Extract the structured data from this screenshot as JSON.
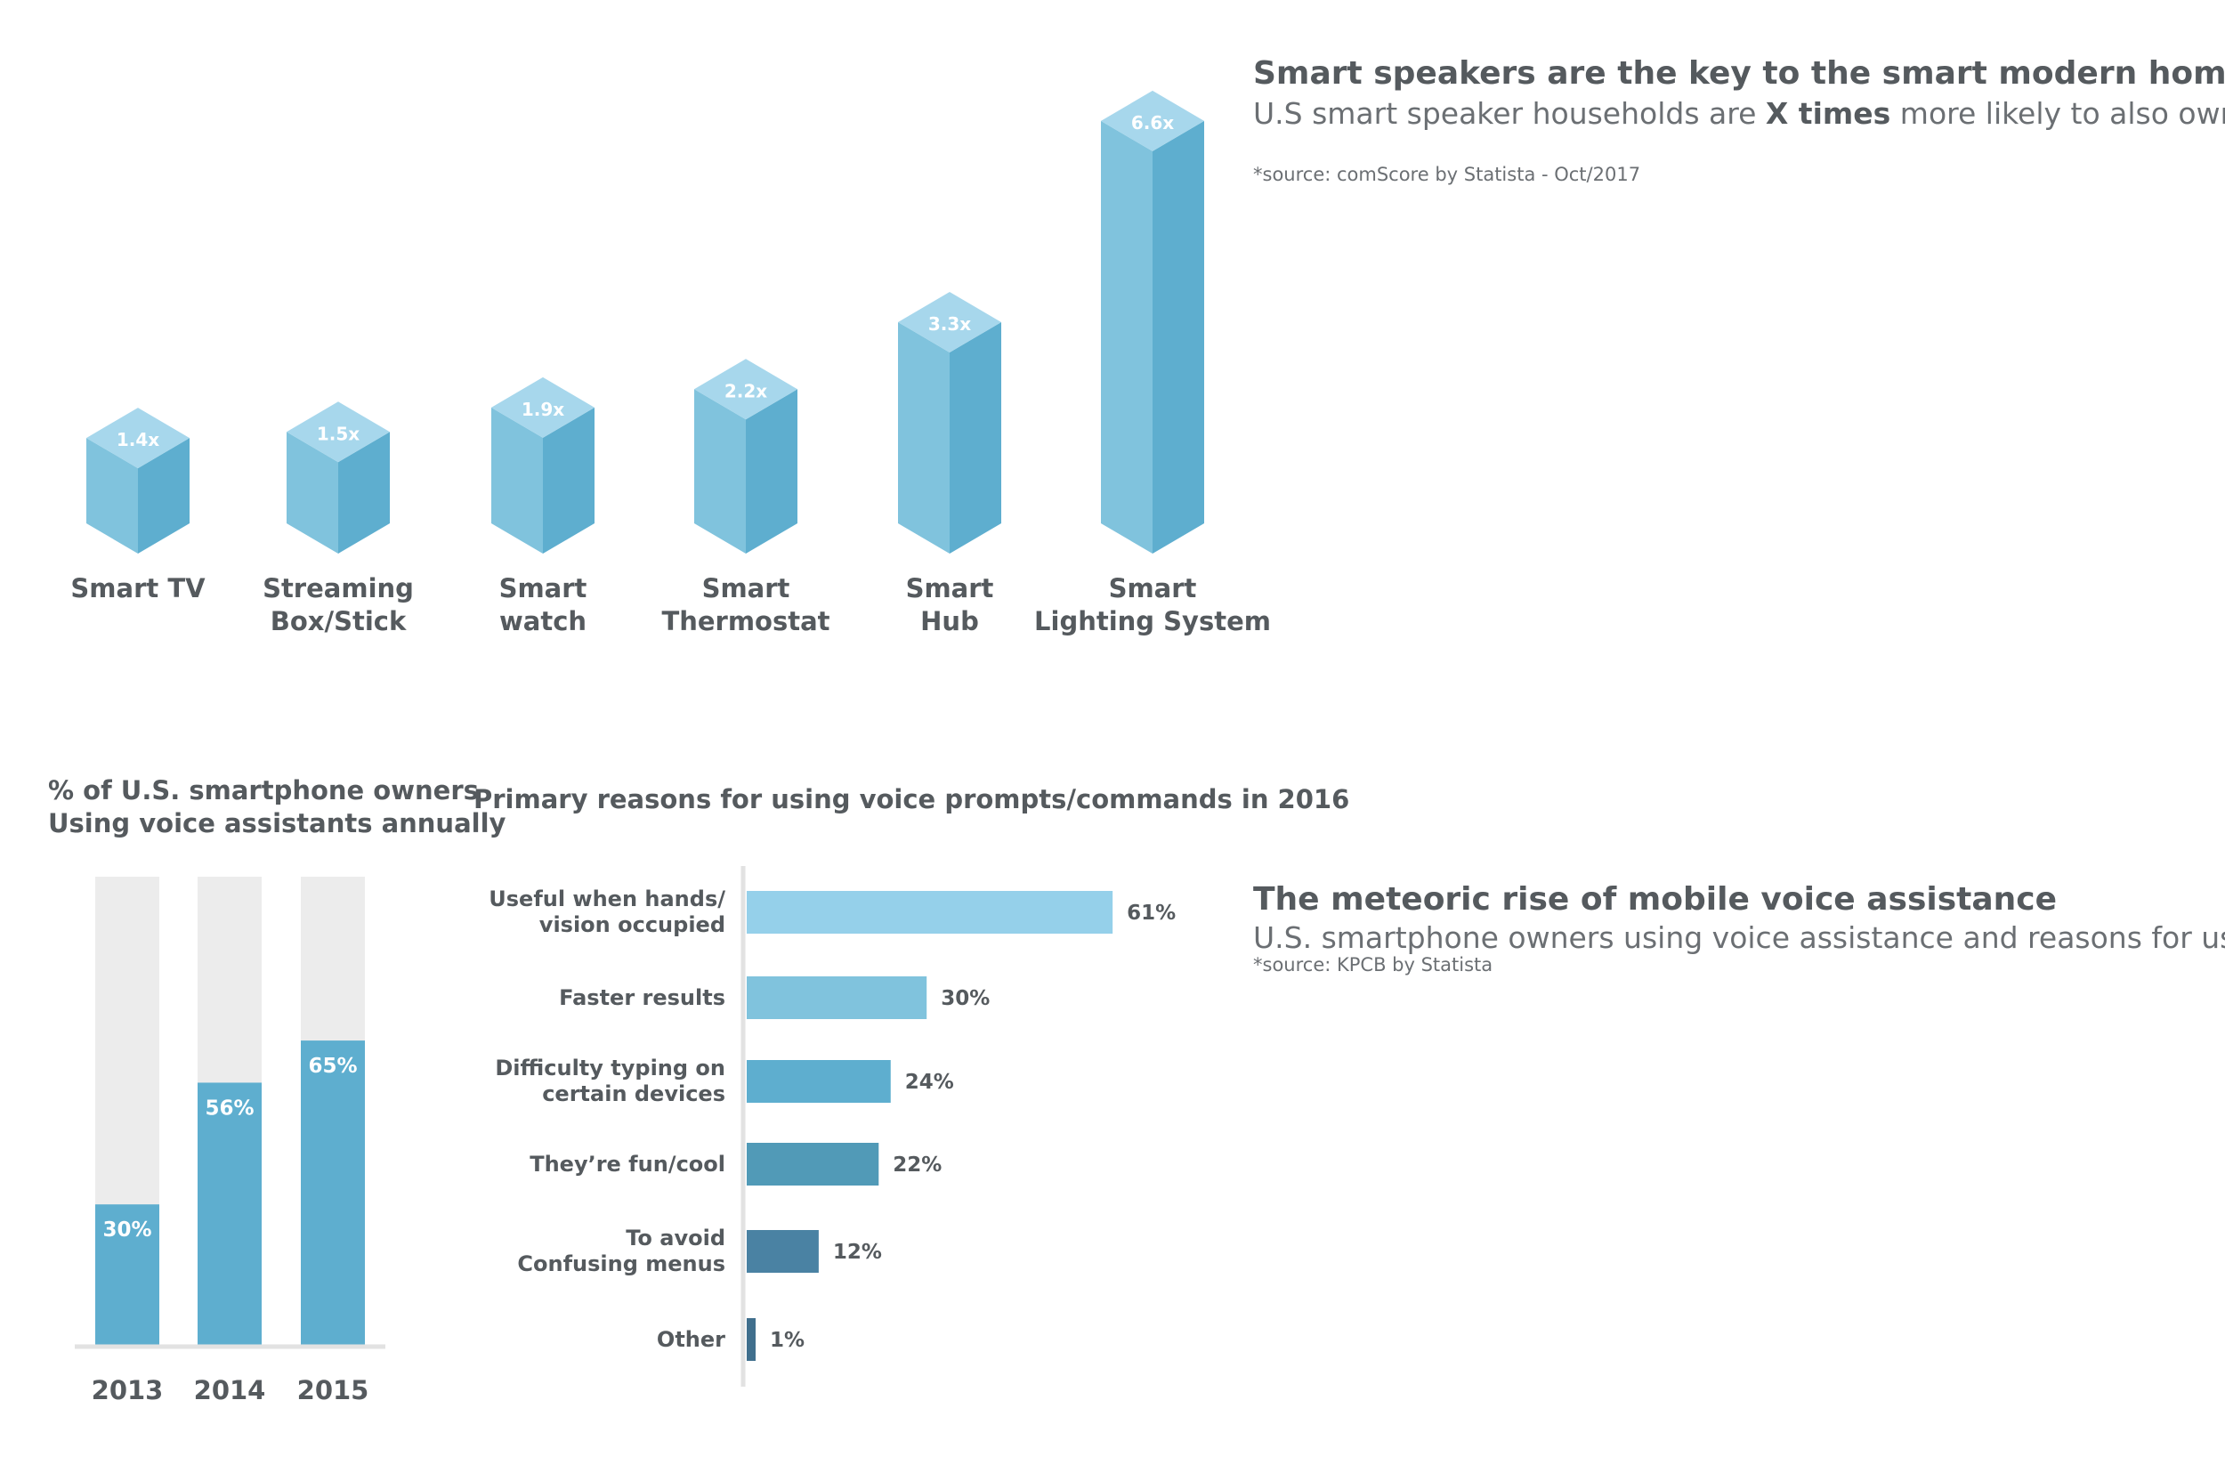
{
  "top": {
    "title": "Smart speakers are the key to the smart modern home?",
    "subtitle_pre": "U.S smart speaker households are ",
    "subtitle_bold": "X times",
    "subtitle_post": " more likely to also own a…",
    "source": "*source: comScore by Statista - Oct/2017"
  },
  "bottom": {
    "title": "The meteoric rise of mobile voice assistance",
    "subtitle": "U.S. smartphone owners using voice assistance and reasons for use",
    "source": "*source: KPCB by Statista",
    "left_title_line1": "% of U.S. smartphone owners",
    "left_title_line2": "Using voice assistants annually",
    "right_title": "Primary reasons for using voice prompts/commands in 2016"
  },
  "colors": {
    "cube_front": "#80c3dd",
    "cube_side": "#5eaecf",
    "cube_top": "#a7d7ec",
    "bar_bg": "#ececec",
    "bar_fill": "#5eaecf",
    "hbar_colors": [
      "#95d0ea",
      "#80c3dd",
      "#5eaecf",
      "#519ab7",
      "#4a82a3",
      "#406f8d"
    ]
  },
  "chart_data": [
    {
      "type": "bar",
      "style": "3d-cubes",
      "categories": [
        "Smart TV",
        "Streaming Box/Stick",
        "Smart watch",
        "Smart Thermostat",
        "Smart Hub",
        "Smart Lighting System"
      ],
      "category_lines": [
        [
          "Smart TV"
        ],
        [
          "Streaming",
          "Box/Stick"
        ],
        [
          "Smart",
          "watch"
        ],
        [
          "Smart",
          "Thermostat"
        ],
        [
          "Smart",
          "Hub"
        ],
        [
          "Smart",
          "Lighting System"
        ]
      ],
      "values": [
        1.4,
        1.5,
        1.9,
        2.2,
        3.3,
        6.6
      ],
      "labels": [
        "1.4x",
        "1.5x",
        "1.9x",
        "2.2x",
        "3.3x",
        "6.6x"
      ],
      "title": "Smart speakers are the key to the smart modern home?"
    },
    {
      "type": "bar",
      "style": "stacked-percent",
      "categories": [
        "2013",
        "2014",
        "2015"
      ],
      "values": [
        30,
        56,
        65
      ],
      "labels": [
        "30%",
        "56%",
        "65%"
      ],
      "ylim": [
        0,
        100
      ],
      "title": "% of U.S. smartphone owners Using voice assistants annually"
    },
    {
      "type": "bar",
      "orientation": "horizontal",
      "categories": [
        "Useful when hands/ vision occupied",
        "Faster results",
        "Difficulty typing on certain devices",
        "They're fun/cool",
        "To avoid Confusing menus",
        "Other"
      ],
      "category_lines": [
        [
          "Useful when hands/",
          "vision occupied"
        ],
        [
          "Faster results"
        ],
        [
          "Difficulty typing on",
          "certain devices"
        ],
        [
          "They’re fun/cool"
        ],
        [
          "To avoid",
          "Confusing menus"
        ],
        [
          "Other"
        ]
      ],
      "values": [
        61,
        30,
        24,
        22,
        12,
        1
      ],
      "labels": [
        "61%",
        "30%",
        "24%",
        "22%",
        "12%",
        "1%"
      ],
      "title": "Primary reasons for using voice prompts/commands in 2016"
    }
  ]
}
